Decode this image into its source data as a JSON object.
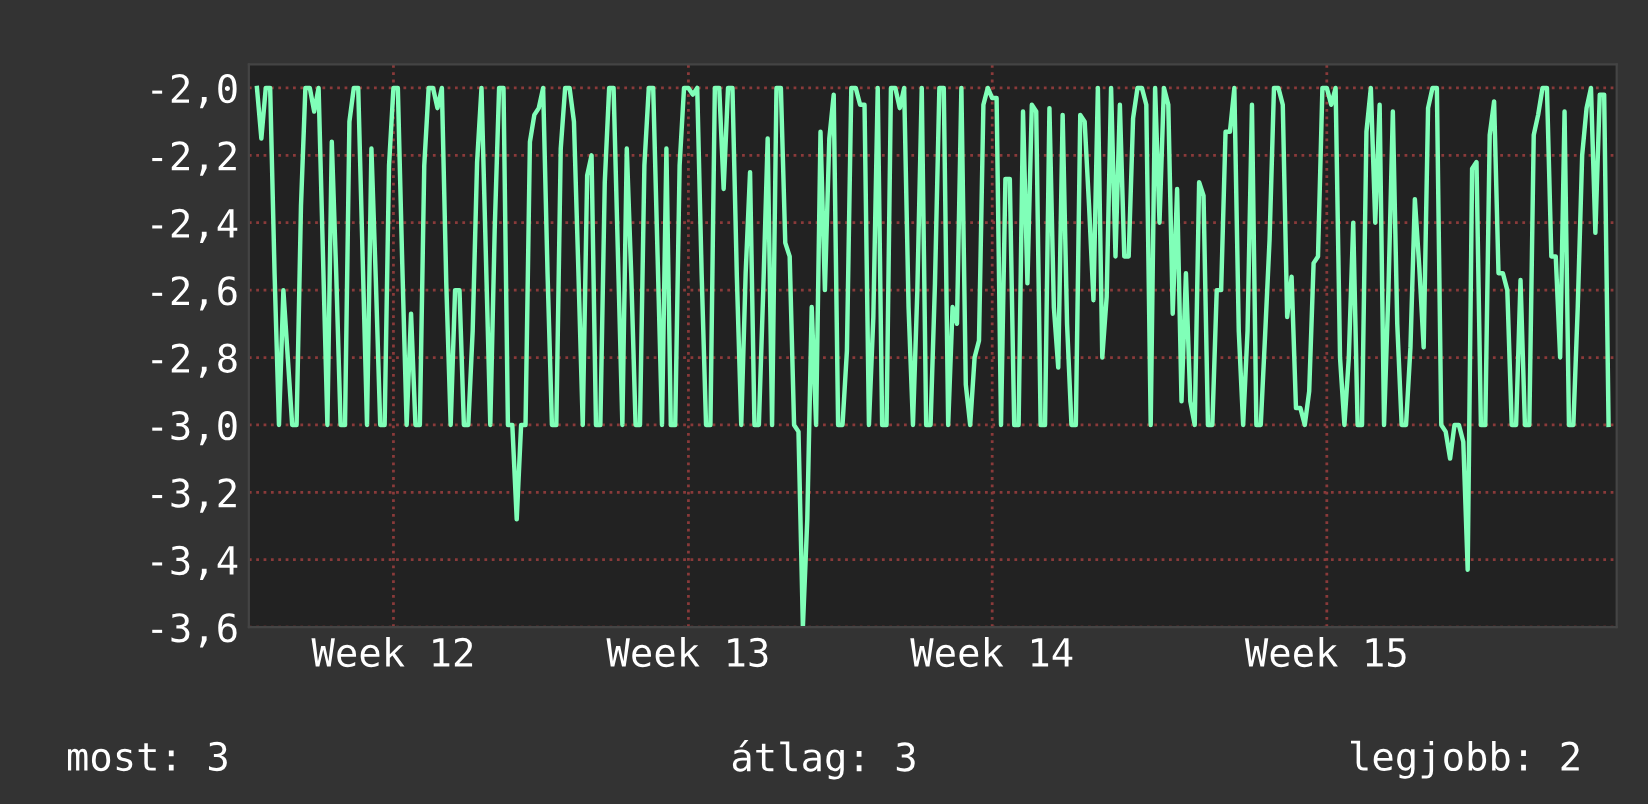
{
  "chart_data": {
    "type": "line",
    "ylim": [
      -3.6,
      -1.93
    ],
    "categories": [
      null,
      null,
      null,
      null,
      null,
      null,
      null,
      null,
      null,
      null,
      null,
      null,
      null,
      null,
      null,
      null,
      null,
      null,
      null,
      null,
      null,
      null,
      null,
      null,
      null,
      null,
      null,
      null,
      null,
      null,
      null,
      "Week 12",
      null,
      null,
      null,
      null,
      null,
      null,
      null,
      null,
      null,
      null,
      null,
      null,
      null,
      null,
      null,
      null,
      null,
      null,
      null,
      null,
      null,
      null,
      null,
      null,
      null,
      null,
      null,
      null,
      null,
      null,
      null,
      null,
      null,
      null,
      null,
      null,
      null,
      null,
      null,
      null,
      null,
      null,
      null,
      null,
      null,
      null,
      null,
      null,
      null,
      null,
      null,
      null,
      null,
      null,
      null,
      null,
      null,
      null,
      null,
      null,
      null,
      null,
      null,
      null,
      null,
      null,
      "Week 13",
      null,
      null,
      null,
      null,
      null,
      null,
      null,
      null,
      null,
      null,
      null,
      null,
      null,
      null,
      null,
      null,
      null,
      null,
      null,
      null,
      null,
      null,
      null,
      null,
      null,
      null,
      null,
      null,
      null,
      null,
      null,
      null,
      null,
      null,
      null,
      null,
      null,
      null,
      null,
      null,
      null,
      null,
      null,
      null,
      null,
      null,
      null,
      null,
      null,
      null,
      null,
      null,
      null,
      null,
      null,
      null,
      null,
      null,
      null,
      null,
      null,
      null,
      null,
      null,
      null,
      null,
      null,
      null,
      "Week 14",
      null,
      null,
      null,
      null,
      null,
      null,
      null,
      null,
      null,
      null,
      null,
      null,
      null,
      null,
      null,
      null,
      null,
      null,
      null,
      null,
      null,
      null,
      null,
      null,
      null,
      null,
      null,
      null,
      null,
      null,
      null,
      null,
      null,
      null,
      null,
      null,
      null,
      null,
      null,
      null,
      null,
      null,
      null,
      null,
      null,
      null,
      null,
      null,
      null,
      null,
      null,
      null,
      null,
      null,
      null,
      null,
      null,
      null,
      null,
      null,
      null,
      null,
      null,
      null,
      null,
      null,
      null,
      null,
      null,
      null,
      null,
      null,
      null,
      null,
      null,
      "Week 15",
      null,
      null,
      null,
      null,
      null,
      null,
      null,
      null,
      null,
      null,
      null,
      null,
      null,
      null,
      null,
      null,
      null,
      null,
      null,
      null,
      null,
      null,
      null,
      null,
      null,
      null,
      null,
      null,
      null,
      null,
      null,
      null,
      null,
      null,
      null,
      null,
      null,
      null,
      null,
      null,
      null,
      null,
      null,
      null,
      null,
      null,
      null,
      null,
      null,
      null,
      null,
      null,
      null,
      null,
      null,
      null,
      null,
      null,
      null,
      null,
      null,
      null,
      null,
      null
    ],
    "yticks": [
      {
        "value": -2.0,
        "label": "-2,0"
      },
      {
        "value": -2.2,
        "label": "-2,2"
      },
      {
        "value": -2.4,
        "label": "-2,4"
      },
      {
        "value": -2.6,
        "label": "-2,6"
      },
      {
        "value": -2.8,
        "label": "-2,8"
      },
      {
        "value": -3.0,
        "label": "-3,0"
      },
      {
        "value": -3.2,
        "label": "-3,2"
      },
      {
        "value": -3.4,
        "label": "-3,4"
      },
      {
        "value": -3.6,
        "label": "-3,6"
      }
    ],
    "grid": true,
    "legend": false,
    "marker": "none",
    "line_style": "solid",
    "annotations": [
      "most: 3",
      "átlag: 3",
      "legjobb: 2"
    ],
    "series": [
      {
        "color": "#80ffb8",
        "values": [
          -2.0,
          -2.15,
          -2.0,
          -2.0,
          -2.55,
          -3.0,
          -2.6,
          -2.8,
          -3.0,
          -3.0,
          -2.35,
          -2.0,
          -2.0,
          -2.07,
          -2.0,
          -2.5,
          -3.0,
          -2.16,
          -2.55,
          -3.0,
          -3.0,
          -2.1,
          -2.0,
          -2.0,
          -2.5,
          -3.0,
          -2.18,
          -2.57,
          -3.0,
          -3.0,
          -2.23,
          -2.0,
          -2.0,
          -2.52,
          -3.0,
          -2.67,
          -3.0,
          -3.0,
          -2.23,
          -2.0,
          -2.0,
          -2.06,
          -2.0,
          -2.58,
          -3.0,
          -2.6,
          -2.6,
          -3.0,
          -3.0,
          -2.72,
          -2.22,
          -2.0,
          -2.5,
          -3.0,
          -2.42,
          -2.0,
          -2.0,
          -3.0,
          -3.0,
          -3.28,
          -3.0,
          -3.0,
          -2.16,
          -2.08,
          -2.06,
          -2.0,
          -2.55,
          -3.0,
          -3.0,
          -2.18,
          -2.0,
          -2.0,
          -2.1,
          -2.54,
          -3.0,
          -2.26,
          -2.2,
          -3.0,
          -3.0,
          -2.28,
          -2.0,
          -2.0,
          -2.5,
          -3.0,
          -2.18,
          -2.55,
          -3.0,
          -3.0,
          -2.23,
          -2.0,
          -2.0,
          -2.5,
          -3.0,
          -2.18,
          -3.0,
          -3.0,
          -2.23,
          -2.0,
          -2.0,
          -2.02,
          -2.0,
          -2.55,
          -3.0,
          -3.0,
          -2.0,
          -2.0,
          -2.3,
          -2.0,
          -2.0,
          -2.56,
          -3.0,
          -2.55,
          -2.25,
          -3.0,
          -3.0,
          -2.6,
          -2.15,
          -3.0,
          -2.0,
          -2.0,
          -2.46,
          -2.5,
          -3.0,
          -3.02,
          -3.6,
          -3.28,
          -2.65,
          -3.0,
          -2.13,
          -2.6,
          -2.15,
          -2.02,
          -3.0,
          -3.0,
          -2.78,
          -2.0,
          -2.0,
          -2.05,
          -2.05,
          -3.0,
          -2.68,
          -2.0,
          -3.0,
          -3.0,
          -2.0,
          -2.0,
          -2.06,
          -2.0,
          -2.65,
          -3.0,
          -2.6,
          -2.0,
          -3.0,
          -3.0,
          -2.58,
          -2.0,
          -2.0,
          -3.0,
          -2.65,
          -2.7,
          -2.0,
          -2.88,
          -3.0,
          -2.8,
          -2.75,
          -2.05,
          -2.0,
          -2.03,
          -2.03,
          -3.0,
          -2.27,
          -2.27,
          -3.0,
          -3.0,
          -2.07,
          -2.58,
          -2.05,
          -2.07,
          -3.0,
          -3.0,
          -2.06,
          -2.65,
          -2.83,
          -2.08,
          -2.7,
          -3.0,
          -3.0,
          -2.08,
          -2.1,
          -2.35,
          -2.63,
          -2.0,
          -2.8,
          -2.62,
          -2.0,
          -2.5,
          -2.05,
          -2.5,
          -2.5,
          -2.09,
          -2.0,
          -2.0,
          -2.05,
          -3.0,
          -2.0,
          -2.4,
          -2.0,
          -2.05,
          -2.67,
          -2.3,
          -2.93,
          -2.55,
          -2.93,
          -3.0,
          -2.28,
          -2.32,
          -3.0,
          -3.0,
          -2.6,
          -2.6,
          -2.13,
          -2.13,
          -2.0,
          -2.72,
          -3.0,
          -2.72,
          -2.05,
          -3.0,
          -3.0,
          -2.73,
          -2.45,
          -2.0,
          -2.0,
          -2.05,
          -2.68,
          -2.56,
          -2.95,
          -2.95,
          -3.0,
          -2.9,
          -2.52,
          -2.5,
          -2.0,
          -2.0,
          -2.05,
          -2.0,
          -2.8,
          -3.0,
          -2.8,
          -2.4,
          -3.0,
          -3.0,
          -2.13,
          -2.0,
          -2.4,
          -2.05,
          -3.0,
          -2.6,
          -2.07,
          -2.7,
          -3.0,
          -3.0,
          -2.77,
          -2.33,
          -2.53,
          -2.77,
          -2.06,
          -2.0,
          -2.0,
          -3.0,
          -3.02,
          -3.1,
          -3.0,
          -3.0,
          -3.05,
          -3.43,
          -2.24,
          -2.22,
          -3.0,
          -3.0,
          -2.14,
          -2.04,
          -2.55,
          -2.55,
          -2.6,
          -3.0,
          -3.0,
          -2.57,
          -3.0,
          -3.0,
          -2.14,
          -2.08,
          -2.0,
          -2.0,
          -2.5,
          -2.5,
          -2.8,
          -2.07,
          -3.0,
          -3.0,
          -2.65,
          -2.2,
          -2.06,
          -2.0,
          -2.43,
          -2.02,
          -2.02,
          -3.0
        ]
      }
    ]
  }
}
